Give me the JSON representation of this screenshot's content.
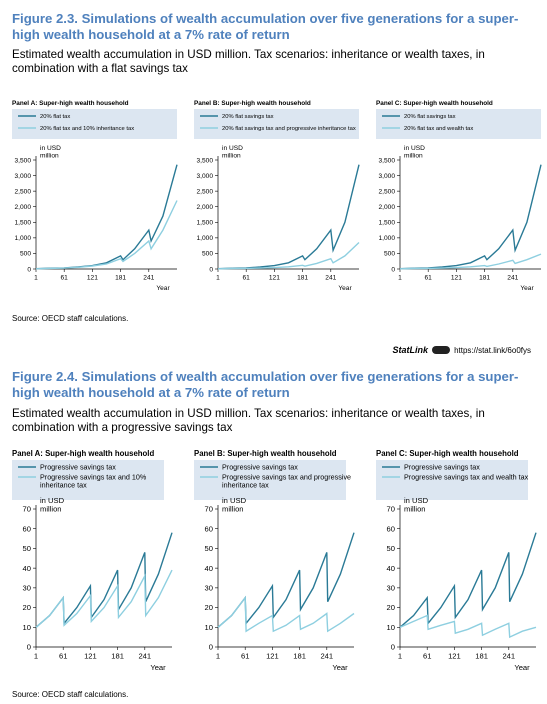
{
  "figures": [
    {
      "title": "Figure 2.3. Simulations of wealth accumulation over five generations for a super-high wealth household at a 7% rate of return",
      "subtitle": "Estimated wealth accumulation in USD million. Tax scenarios: inheritance or wealth taxes, in combination with a flat savings tax",
      "source": "Source: OECD staff calculations."
    },
    {
      "title": "Figure 2.4. Simulations of wealth accumulation over five generations for a super-high wealth household at a 7% rate of return",
      "subtitle": "Estimated wealth accumulation in USD million. Tax scenarios: inheritance or wealth taxes, in combination with a progressive savings tax",
      "source": "Source: OECD staff calculations."
    }
  ],
  "statlink": {
    "word": "StatLink",
    "url": "https://stat.link/6o0fys"
  },
  "colors": {
    "dark": "#2a7a96",
    "light": "#8ecfe0",
    "title": "#4f81bd",
    "legend_bg": "#dce6f1"
  },
  "chart_data": [
    {
      "type": "line",
      "title": "Panel A: Super-high wealth household",
      "ylabel": "in USD million",
      "xlabel": "Year",
      "xticks": [
        1,
        61,
        121,
        181,
        241
      ],
      "xlim": [
        1,
        301
      ],
      "yticks": [
        0,
        500,
        1000,
        1500,
        2000,
        2500,
        3000,
        3500
      ],
      "ylim": [
        0,
        3500
      ],
      "series": [
        {
          "name": "20% flat tax",
          "style": "dark",
          "points": [
            [
              1,
              10
            ],
            [
              31,
              25
            ],
            [
              61,
              35
            ],
            [
              91,
              65
            ],
            [
              121,
              110
            ],
            [
              151,
              200
            ],
            [
              181,
              420
            ],
            [
              186,
              300
            ],
            [
              211,
              650
            ],
            [
              241,
              1250
            ],
            [
              246,
              900
            ],
            [
              271,
              1700
            ],
            [
              301,
              3350
            ]
          ]
        },
        {
          "name": "20% flat tax and 10% inheritance tax",
          "style": "light",
          "points": [
            [
              1,
              8
            ],
            [
              31,
              20
            ],
            [
              61,
              28
            ],
            [
              91,
              55
            ],
            [
              121,
              95
            ],
            [
              151,
              160
            ],
            [
              181,
              330
            ],
            [
              186,
              240
            ],
            [
              211,
              500
            ],
            [
              241,
              900
            ],
            [
              246,
              650
            ],
            [
              271,
              1250
            ],
            [
              301,
              2200
            ]
          ]
        }
      ]
    },
    {
      "type": "line",
      "title": "Panel B: Super-high wealth household",
      "ylabel": "in USD million",
      "xlabel": "Year",
      "xticks": [
        1,
        61,
        121,
        181,
        241
      ],
      "xlim": [
        1,
        301
      ],
      "yticks": [
        0,
        500,
        1000,
        1500,
        2000,
        2500,
        3000,
        3500
      ],
      "ylim": [
        0,
        3500
      ],
      "series": [
        {
          "name": "20% flat savings tax",
          "style": "dark",
          "points": [
            [
              1,
              10
            ],
            [
              31,
              25
            ],
            [
              61,
              35
            ],
            [
              91,
              65
            ],
            [
              121,
              110
            ],
            [
              151,
              200
            ],
            [
              181,
              420
            ],
            [
              186,
              300
            ],
            [
              211,
              650
            ],
            [
              241,
              1250
            ],
            [
              246,
              600
            ],
            [
              271,
              1500
            ],
            [
              301,
              3350
            ]
          ]
        },
        {
          "name": "20% flat savings tax and progressive inheritance tax",
          "style": "light",
          "points": [
            [
              1,
              8
            ],
            [
              31,
              15
            ],
            [
              61,
              20
            ],
            [
              91,
              30
            ],
            [
              121,
              45
            ],
            [
              151,
              70
            ],
            [
              181,
              120
            ],
            [
              186,
              90
            ],
            [
              211,
              180
            ],
            [
              241,
              330
            ],
            [
              246,
              200
            ],
            [
              271,
              420
            ],
            [
              301,
              850
            ]
          ]
        }
      ]
    },
    {
      "type": "line",
      "title": "Panel C: Super-high wealth household",
      "ylabel": "in USD million",
      "xlabel": "Year",
      "xticks": [
        1,
        61,
        121,
        181,
        241
      ],
      "xlim": [
        1,
        301
      ],
      "yticks": [
        0,
        500,
        1000,
        1500,
        2000,
        2500,
        3000,
        3500
      ],
      "ylim": [
        0,
        3500
      ],
      "series": [
        {
          "name": "20% flat savings tax",
          "style": "dark",
          "points": [
            [
              1,
              10
            ],
            [
              31,
              25
            ],
            [
              61,
              35
            ],
            [
              91,
              65
            ],
            [
              121,
              110
            ],
            [
              151,
              200
            ],
            [
              181,
              420
            ],
            [
              186,
              300
            ],
            [
              211,
              650
            ],
            [
              241,
              1250
            ],
            [
              246,
              600
            ],
            [
              271,
              1500
            ],
            [
              301,
              3350
            ]
          ]
        },
        {
          "name": "20% flat tax and wealth tax",
          "style": "light",
          "points": [
            [
              1,
              8
            ],
            [
              31,
              15
            ],
            [
              61,
              20
            ],
            [
              91,
              30
            ],
            [
              121,
              45
            ],
            [
              151,
              70
            ],
            [
              181,
              110
            ],
            [
              186,
              85
            ],
            [
              211,
              160
            ],
            [
              241,
              280
            ],
            [
              246,
              180
            ],
            [
              271,
              300
            ],
            [
              301,
              480
            ]
          ]
        }
      ]
    },
    {
      "type": "line",
      "title": "Panel A: Super-high wealth household",
      "ylabel": "in USD million",
      "xlabel": "Year",
      "xticks": [
        1,
        61,
        121,
        181,
        241
      ],
      "xlim": [
        1,
        301
      ],
      "yticks": [
        0,
        10,
        20,
        30,
        40,
        50,
        60,
        70
      ],
      "ylim": [
        0,
        70
      ],
      "series": [
        {
          "name": "Progressive savings tax",
          "style": "dark",
          "points": [
            [
              1,
              10
            ],
            [
              31,
              16
            ],
            [
              61,
              25
            ],
            [
              63,
              12
            ],
            [
              91,
              20
            ],
            [
              121,
              31
            ],
            [
              123,
              15
            ],
            [
              151,
              24
            ],
            [
              181,
              39
            ],
            [
              183,
              19
            ],
            [
              211,
              30
            ],
            [
              241,
              48
            ],
            [
              243,
              23
            ],
            [
              271,
              37
            ],
            [
              301,
              58
            ]
          ]
        },
        {
          "name": "Progressive savings tax and 10% inheritance tax",
          "style": "light",
          "points": [
            [
              1,
              10
            ],
            [
              31,
              16
            ],
            [
              61,
              25
            ],
            [
              63,
              11
            ],
            [
              91,
              17
            ],
            [
              121,
              26
            ],
            [
              123,
              13
            ],
            [
              151,
              20
            ],
            [
              181,
              31
            ],
            [
              183,
              15
            ],
            [
              211,
              23
            ],
            [
              241,
              36
            ],
            [
              243,
              16
            ],
            [
              271,
              25
            ],
            [
              301,
              39
            ]
          ]
        }
      ]
    },
    {
      "type": "line",
      "title": "Panel B: Super-high wealth household",
      "ylabel": "in USD million",
      "xlabel": "Year",
      "xticks": [
        1,
        61,
        121,
        181,
        241
      ],
      "xlim": [
        1,
        301
      ],
      "yticks": [
        0,
        10,
        20,
        30,
        40,
        50,
        60,
        70
      ],
      "ylim": [
        0,
        70
      ],
      "series": [
        {
          "name": "Progressive savings tax",
          "style": "dark",
          "points": [
            [
              1,
              10
            ],
            [
              31,
              16
            ],
            [
              61,
              25
            ],
            [
              63,
              12
            ],
            [
              91,
              20
            ],
            [
              121,
              31
            ],
            [
              123,
              15
            ],
            [
              151,
              24
            ],
            [
              181,
              39
            ],
            [
              183,
              19
            ],
            [
              211,
              30
            ],
            [
              241,
              48
            ],
            [
              243,
              23
            ],
            [
              271,
              37
            ],
            [
              301,
              58
            ]
          ]
        },
        {
          "name": "Progressive savings tax and progressive inheritance tax",
          "style": "light",
          "points": [
            [
              1,
              10
            ],
            [
              31,
              16
            ],
            [
              61,
              25
            ],
            [
              63,
              8
            ],
            [
              91,
              12
            ],
            [
              121,
              16
            ],
            [
              123,
              8
            ],
            [
              151,
              11
            ],
            [
              181,
              16
            ],
            [
              183,
              9
            ],
            [
              211,
              12
            ],
            [
              241,
              17
            ],
            [
              243,
              8
            ],
            [
              271,
              12
            ],
            [
              301,
              17
            ]
          ]
        }
      ]
    },
    {
      "type": "line",
      "title": "Panel C: Super-high wealth household",
      "ylabel": "in USD million",
      "xlabel": "Year",
      "xticks": [
        1,
        61,
        121,
        181,
        241
      ],
      "xlim": [
        1,
        301
      ],
      "yticks": [
        0,
        10,
        20,
        30,
        40,
        50,
        60,
        70
      ],
      "ylim": [
        0,
        70
      ],
      "series": [
        {
          "name": "Progressive savings tax",
          "style": "dark",
          "points": [
            [
              1,
              10
            ],
            [
              31,
              16
            ],
            [
              61,
              25
            ],
            [
              63,
              12
            ],
            [
              91,
              20
            ],
            [
              121,
              31
            ],
            [
              123,
              15
            ],
            [
              151,
              24
            ],
            [
              181,
              39
            ],
            [
              183,
              19
            ],
            [
              211,
              30
            ],
            [
              241,
              48
            ],
            [
              243,
              23
            ],
            [
              271,
              37
            ],
            [
              301,
              58
            ]
          ]
        },
        {
          "name": "Progressive savings tax and wealth tax",
          "style": "light",
          "points": [
            [
              1,
              10
            ],
            [
              31,
              13
            ],
            [
              61,
              16
            ],
            [
              63,
              9
            ],
            [
              91,
              11
            ],
            [
              121,
              13
            ],
            [
              123,
              7
            ],
            [
              151,
              9
            ],
            [
              181,
              12
            ],
            [
              183,
              6
            ],
            [
              211,
              9
            ],
            [
              241,
              12
            ],
            [
              243,
              5
            ],
            [
              271,
              8
            ],
            [
              301,
              10
            ]
          ]
        }
      ]
    }
  ]
}
